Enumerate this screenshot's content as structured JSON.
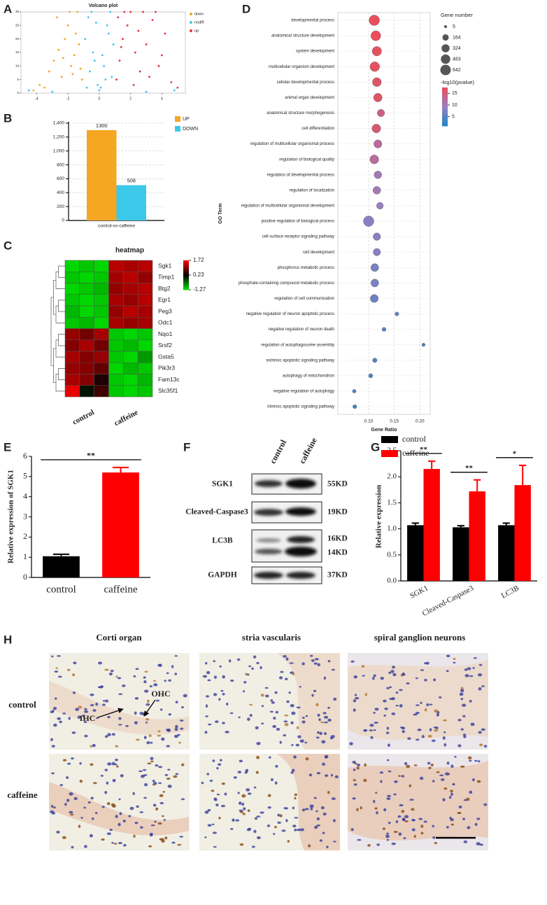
{
  "panel_labels": [
    "A",
    "B",
    "C",
    "D",
    "E",
    "F",
    "G",
    "H"
  ],
  "chart_data": [
    {
      "type": "scatter",
      "title": "Volcano plot",
      "xlim": [
        -5,
        5.5
      ],
      "ylim": [
        0,
        30
      ],
      "xticks": [
        -4,
        -2,
        0,
        2,
        4
      ],
      "yticks": [
        0,
        5,
        10,
        15,
        20,
        25,
        30
      ],
      "legend": "right",
      "series": [
        {
          "name": "down",
          "color": "#f5a623",
          "x": [
            -3.8,
            -3.2,
            -2.9,
            -2.6,
            -2.4,
            -2.2,
            -2.0,
            -1.8,
            -1.6,
            -1.5,
            -1.3,
            -1.2,
            -1.1,
            -3.5,
            -2.7,
            -1.9,
            -1.4,
            -4.2,
            -2.3,
            -1.7
          ],
          "y": [
            3,
            8,
            12,
            16,
            6,
            20,
            25,
            10,
            14,
            22,
            18,
            9,
            5,
            2,
            28,
            30,
            30,
            1,
            13,
            7
          ]
        },
        {
          "name": "nodiff",
          "color": "#3cc8e8",
          "x": [
            -0.9,
            -0.7,
            -0.5,
            -0.3,
            -0.1,
            0.1,
            0.3,
            0.5,
            0.7,
            0.9,
            -0.6,
            -0.4,
            0.4,
            0.6,
            -0.8,
            0.8,
            0.0,
            -0.2,
            0.2,
            -4.5,
            4.8,
            -3.0,
            3.0
          ],
          "y": [
            20,
            28,
            30,
            12,
            3,
            2,
            10,
            25,
            30,
            18,
            8,
            15,
            5,
            22,
            2,
            6,
            1,
            26,
            14,
            1,
            1,
            0.5,
            0.5
          ]
        },
        {
          "name": "up",
          "color": "#e8303a",
          "x": [
            1.1,
            1.3,
            1.5,
            1.8,
            2.0,
            2.3,
            2.6,
            3.0,
            3.4,
            3.8,
            4.2,
            4.6,
            1.2,
            1.6,
            2.2,
            2.8,
            3.2,
            4.0,
            1.4,
            2.5,
            5.0,
            3.6
          ],
          "y": [
            5,
            12,
            20,
            25,
            30,
            15,
            8,
            18,
            27,
            10,
            22,
            4,
            28,
            30,
            3,
            30,
            6,
            14,
            17,
            23,
            2,
            30
          ]
        }
      ]
    },
    {
      "type": "bar",
      "categories": [
        "control-vs-caffeine"
      ],
      "ylim": [
        0,
        1420
      ],
      "yticks": [
        0,
        200,
        400,
        600,
        800,
        {
          "value": 1000,
          "label": "1,000"
        },
        {
          "value": 1200,
          "label": "1,200"
        },
        {
          "value": 1400,
          "label": "1,400"
        }
      ],
      "grid": true,
      "data_labels": true,
      "legend": "right",
      "series": [
        {
          "name": "UP",
          "color": "#f5a623",
          "values": [
            1300
          ]
        },
        {
          "name": "DOWN",
          "color": "#3cc8e8",
          "values": [
            508
          ]
        }
      ]
    },
    {
      "type": "heatmap",
      "title": "heatmap",
      "rows": [
        "Sgk1",
        "Timp1",
        "Btg2",
        "Egr1",
        "Peg3",
        "Odc1",
        "Nqo1",
        "Srsf2",
        "Gsta5",
        "Pik3r3",
        "Fam13c",
        "Slc35f1"
      ],
      "column_groups": [
        "control",
        "caffeine"
      ],
      "values": [
        [
          -1.2,
          -1.1,
          -1.2,
          1.3,
          1.2,
          1.3
        ],
        [
          -1.1,
          -1.2,
          -1.1,
          1.2,
          1.3,
          1.1
        ],
        [
          -1.2,
          -1.1,
          -1.0,
          1.1,
          1.2,
          1.3
        ],
        [
          -1.1,
          -1.2,
          -1.1,
          1.2,
          1.1,
          1.3
        ],
        [
          -1.0,
          -1.2,
          -1.1,
          1.1,
          1.3,
          1.2
        ],
        [
          -1.1,
          -1.0,
          -1.2,
          1.2,
          1.1,
          1.2
        ],
        [
          1.1,
          0.9,
          1.2,
          -1.1,
          -1.2,
          -1.1
        ],
        [
          1.0,
          1.2,
          0.9,
          -1.1,
          -1.0,
          -1.2
        ],
        [
          1.2,
          1.0,
          1.1,
          -1.1,
          -1.2,
          -0.8
        ],
        [
          1.1,
          1.0,
          0.8,
          -1.2,
          -1.0,
          -1.1
        ],
        [
          1.2,
          1.0,
          0.4,
          -1.1,
          -1.2,
          -1.0
        ],
        [
          1.6,
          0.1,
          0.6,
          -1.1,
          -1.2,
          -1.1
        ]
      ],
      "colorbar_ticks": [
        1.72,
        0.23,
        -1.27
      ],
      "colors": [
        "#00e000",
        "#000000",
        "#ff0000"
      ]
    },
    {
      "type": "dot",
      "xlabel": "Gene Ratio",
      "ylabel": "GO Term",
      "grid": true,
      "xlim": [
        0.04,
        0.22
      ],
      "xticks": [
        {
          "value": 0.1,
          "label": "0.10"
        },
        0.15,
        {
          "value": 0.2,
          "label": "0.20"
        }
      ],
      "terms": [
        "developmental process",
        "anatomical structure development",
        "system development",
        "multicellular organism development",
        "cellular developmental process",
        "animal organ development",
        "anatomical structure morphogenesis",
        "cell differentiation",
        "regulation of multicellular organismal process",
        "regulation of biological quality",
        "regulation of developmental process",
        "regulation of localization",
        "regulation of multicellular organismal development",
        "positive regulation of biological process",
        "cell surface receptor signaling pathway",
        "cell development",
        "phosphorus metabolic process",
        "phosphate-containing compound metabolic process",
        "regulation of cell communication",
        "negative regulation of neuron apoptotic process",
        "negative regulation of neuron death",
        "regulation of autophagosome assembly",
        "extrinsic apoptotic signaling pathway",
        "autophagy of mitochondrion",
        "negative regulation of autophagy",
        "intrinsic apoptotic signaling pathway"
      ],
      "gene_ratio": [
        0.111,
        0.114,
        0.116,
        0.112,
        0.116,
        0.118,
        0.124,
        0.115,
        0.118,
        0.111,
        0.118,
        0.116,
        0.122,
        0.1,
        0.116,
        0.116,
        0.112,
        0.112,
        0.111,
        0.155,
        0.13,
        0.207,
        0.112,
        0.104,
        0.072,
        0.073
      ],
      "gene_number": [
        642,
        550,
        483,
        520,
        420,
        380,
        250,
        400,
        330,
        420,
        280,
        290,
        200,
        642,
        260,
        250,
        300,
        300,
        320,
        30,
        35,
        15,
        50,
        40,
        20,
        30
      ],
      "neg_log10_pvalue": [
        17,
        17,
        16.5,
        16.5,
        16,
        16,
        14,
        15,
        12,
        12,
        10,
        10,
        9,
        8,
        8,
        8,
        7,
        7,
        6,
        5,
        5,
        4,
        4,
        4,
        3,
        3
      ],
      "size_legend": {
        "title": "Gene number",
        "values": [
          5,
          164,
          324,
          483,
          642
        ]
      },
      "color_legend": {
        "title": "-log10(pvalue)",
        "ticks": [
          15,
          10,
          5
        ]
      },
      "clim": [
        1,
        17.5
      ],
      "colors": [
        "#2286c8",
        "#9a80c0",
        "#f04a55"
      ]
    },
    {
      "type": "bar",
      "ylabel": "Relative expression of SGK1",
      "categories": [
        "control",
        "caffeine"
      ],
      "values": [
        1.05,
        5.2
      ],
      "errors": [
        0.1,
        0.25
      ],
      "colors": [
        "#000000",
        "#ff0000"
      ],
      "ylim": [
        0,
        6
      ],
      "yticks": [
        0,
        1,
        2,
        3,
        4,
        5,
        6
      ],
      "significance": [
        "**"
      ]
    },
    {
      "type": "bar",
      "ylabel": "Relative expression",
      "categories": [
        "SGK1",
        "Cleaved-Caspase3",
        "LC3B"
      ],
      "legend": "top-left",
      "ylim": [
        0,
        2.5
      ],
      "yticks": [
        {
          "value": 0,
          "label": "0.0"
        },
        0.5,
        {
          "value": 1,
          "label": "1.0"
        },
        1.5,
        {
          "value": 2,
          "label": "2.0"
        },
        2.5
      ],
      "series": [
        {
          "name": "control",
          "color": "#000000",
          "values": [
            1.07,
            1.03,
            1.07
          ],
          "errors": [
            0.04,
            0.03,
            0.04
          ]
        },
        {
          "name": "caffeine",
          "color": "#ff0000",
          "values": [
            2.15,
            1.72,
            1.84
          ],
          "errors": [
            0.15,
            0.22,
            0.38
          ]
        }
      ],
      "significance": [
        "**",
        "**",
        "*"
      ]
    }
  ],
  "blot": {
    "columns": [
      "control",
      "caffeine"
    ],
    "rows": [
      {
        "name": "SGK1",
        "sizes": [
          "55KD"
        ]
      },
      {
        "name": "Cleaved-Caspase3",
        "sizes": [
          "19KD"
        ]
      },
      {
        "name": "LC3B",
        "sizes": [
          "16KD",
          "14KD"
        ]
      },
      {
        "name": "GAPDH",
        "sizes": [
          "37KD"
        ]
      }
    ]
  },
  "histology": {
    "columns": [
      "Corti organ",
      "stria vascularis",
      "spiral ganglion neurons"
    ],
    "rows": [
      "control",
      "caffeine"
    ],
    "annotations": [
      "OHC",
      "IHC"
    ]
  }
}
